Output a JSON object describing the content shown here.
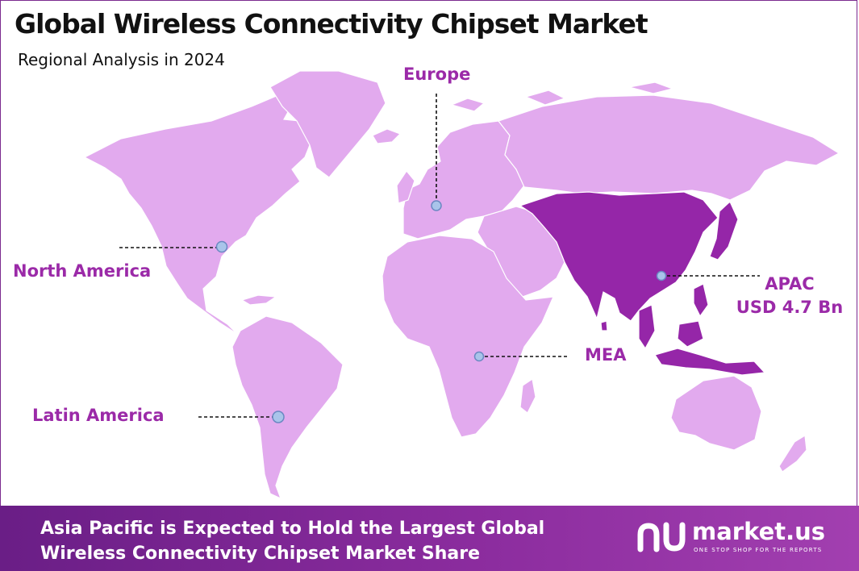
{
  "header": {
    "title": "Global Wireless Connectivity Chipset Market",
    "subtitle": "Regional Analysis in 2024"
  },
  "regions": {
    "north_america": "North America",
    "europe": "Europe",
    "apac": "APAC",
    "apac_value": "USD 4.7 Bn",
    "mea": "MEA",
    "latin_america": "Latin America"
  },
  "highlighted_region": "APAC",
  "colors": {
    "land": "#e2aaee",
    "highlight": "#9526a8",
    "label": "#9b2aa8",
    "marker": "#a9c4ea"
  },
  "footer": {
    "line1": "Asia Pacific is Expected to Hold the Largest Global",
    "line2": "Wireless Connectivity Chipset Market Share"
  },
  "brand": {
    "name": "market.us",
    "tagline": "ONE STOP SHOP FOR THE REPORTS"
  }
}
